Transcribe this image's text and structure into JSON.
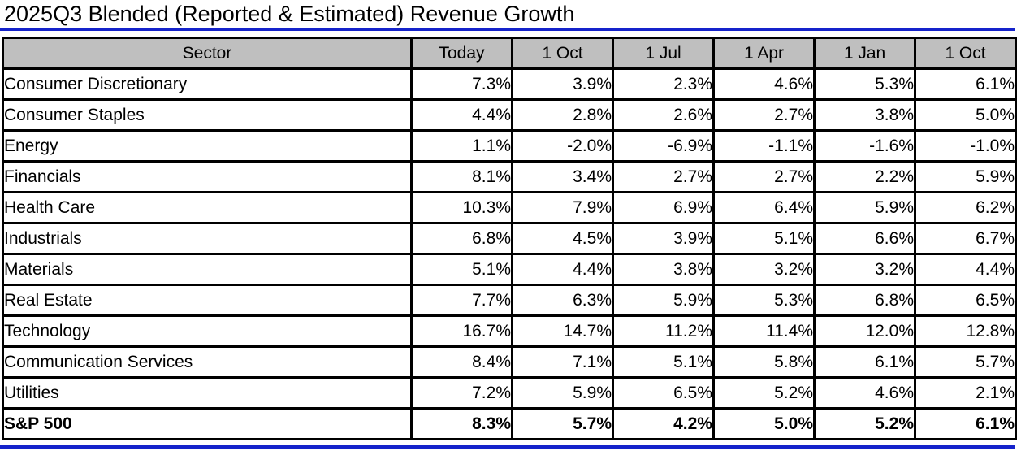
{
  "title": "2025Q3 Blended (Reported & Estimated) Revenue Growth",
  "colors": {
    "accent_blue": "#1523cb",
    "header_bg": "#bfbfbf",
    "border": "#000000",
    "row_bg": "#ffffff"
  },
  "chart_data": {
    "type": "table",
    "title": "2025Q3 Blended (Reported & Estimated) Revenue Growth",
    "columns": [
      "Sector",
      "Today",
      "1 Oct",
      "1 Jul",
      "1 Apr",
      "1 Jan",
      "1 Oct"
    ],
    "rows": [
      {
        "sector": "Consumer Discretionary",
        "values": [
          "7.3%",
          "3.9%",
          "2.3%",
          "4.6%",
          "5.3%",
          "6.1%"
        ],
        "bold": false
      },
      {
        "sector": "Consumer Staples",
        "values": [
          "4.4%",
          "2.8%",
          "2.6%",
          "2.7%",
          "3.8%",
          "5.0%"
        ],
        "bold": false
      },
      {
        "sector": "Energy",
        "values": [
          "1.1%",
          "-2.0%",
          "-6.9%",
          "-1.1%",
          "-1.6%",
          "-1.0%"
        ],
        "bold": false
      },
      {
        "sector": "Financials",
        "values": [
          "8.1%",
          "3.4%",
          "2.7%",
          "2.7%",
          "2.2%",
          "5.9%"
        ],
        "bold": false
      },
      {
        "sector": "Health Care",
        "values": [
          "10.3%",
          "7.9%",
          "6.9%",
          "6.4%",
          "5.9%",
          "6.2%"
        ],
        "bold": false
      },
      {
        "sector": "Industrials",
        "values": [
          "6.8%",
          "4.5%",
          "3.9%",
          "5.1%",
          "6.6%",
          "6.7%"
        ],
        "bold": false
      },
      {
        "sector": "Materials",
        "values": [
          "5.1%",
          "4.4%",
          "3.8%",
          "3.2%",
          "3.2%",
          "4.4%"
        ],
        "bold": false
      },
      {
        "sector": "Real Estate",
        "values": [
          "7.7%",
          "6.3%",
          "5.9%",
          "5.3%",
          "6.8%",
          "6.5%"
        ],
        "bold": false
      },
      {
        "sector": "Technology",
        "values": [
          "16.7%",
          "14.7%",
          "11.2%",
          "11.4%",
          "12.0%",
          "12.8%"
        ],
        "bold": false
      },
      {
        "sector": "Communication Services",
        "values": [
          "8.4%",
          "7.1%",
          "5.1%",
          "5.8%",
          "6.1%",
          "5.7%"
        ],
        "bold": false
      },
      {
        "sector": "Utilities",
        "values": [
          "7.2%",
          "5.9%",
          "6.5%",
          "5.2%",
          "4.6%",
          "2.1%"
        ],
        "bold": false
      },
      {
        "sector": "S&P 500",
        "values": [
          "8.3%",
          "5.7%",
          "4.2%",
          "5.0%",
          "5.2%",
          "6.1%"
        ],
        "bold": true
      }
    ]
  }
}
